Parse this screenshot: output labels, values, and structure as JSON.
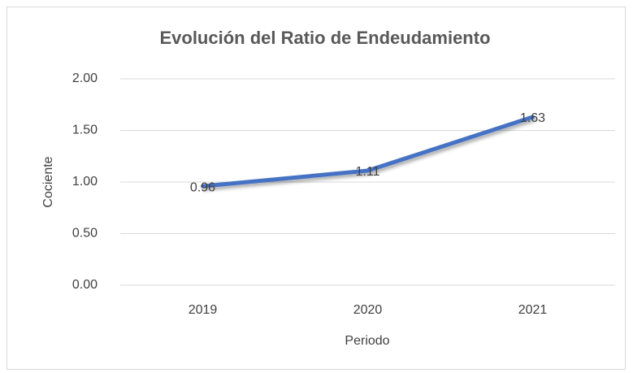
{
  "chart_data": {
    "type": "line",
    "title": "Evolución del Ratio de Endeudamiento",
    "x_label": "Periodo",
    "y_label": "Cociente",
    "categories": [
      "2019",
      "2020",
      "2021"
    ],
    "series": [
      {
        "name": "Cociente",
        "color": "#4472c4",
        "values": [
          0.96,
          1.11,
          1.63
        ]
      }
    ],
    "ylim": [
      0,
      2
    ],
    "yticks": [
      {
        "value": 0,
        "label": "0.00"
      },
      {
        "value": 0.5,
        "label": "0.50"
      },
      {
        "value": 1,
        "label": "1.00"
      },
      {
        "value": 1.5,
        "label": "1.50"
      },
      {
        "value": 2,
        "label": "2.00"
      }
    ],
    "grid": true
  }
}
